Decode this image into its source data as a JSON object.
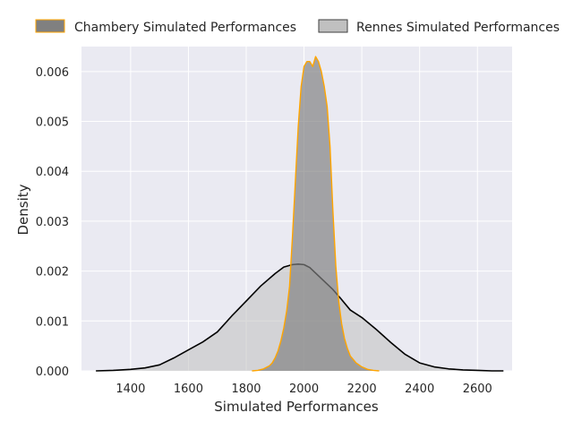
{
  "chart_data": {
    "type": "area",
    "xlabel": "Simulated Performances",
    "ylabel": "Density",
    "xlim": [
      1230,
      2720
    ],
    "ylim": [
      0,
      0.0065
    ],
    "x_ticks": [
      1400,
      1600,
      1800,
      2000,
      2200,
      2400,
      2600
    ],
    "y_ticks": [
      0.0,
      0.001,
      0.002,
      0.003,
      0.004,
      0.005,
      0.006
    ],
    "y_tick_labels": [
      "0.000",
      "0.001",
      "0.002",
      "0.003",
      "0.004",
      "0.005",
      "0.006"
    ],
    "grid": true,
    "legend_position": "top",
    "series": [
      {
        "name": "Chambery Simulated Performances",
        "fill": "#808080",
        "edge": "#FFA500",
        "x": [
          1820,
          1840,
          1860,
          1880,
          1890,
          1900,
          1910,
          1920,
          1930,
          1940,
          1950,
          1960,
          1970,
          1980,
          1990,
          2000,
          2010,
          2020,
          2030,
          2040,
          2050,
          2060,
          2070,
          2080,
          2090,
          2100,
          2110,
          2120,
          2130,
          2140,
          2150,
          2160,
          2180,
          2200,
          2220,
          2240,
          2260
        ],
        "y": [
          0.0,
          1e-05,
          4e-05,
          0.0001,
          0.00016,
          0.00026,
          0.0004,
          0.0006,
          0.00086,
          0.0012,
          0.0017,
          0.0027,
          0.0038,
          0.0049,
          0.0057,
          0.0061,
          0.0062,
          0.0062,
          0.0061,
          0.0063,
          0.0062,
          0.006,
          0.0057,
          0.0053,
          0.0045,
          0.0032,
          0.0021,
          0.0014,
          0.00095,
          0.00065,
          0.00045,
          0.0003,
          0.00016,
          8e-05,
          3e-05,
          1e-05,
          0.0
        ]
      },
      {
        "name": "Rennes Simulated Performances",
        "fill": "#c0c0c0",
        "edge": "#000000",
        "x": [
          1280,
          1340,
          1400,
          1450,
          1500,
          1550,
          1600,
          1650,
          1700,
          1750,
          1800,
          1850,
          1900,
          1930,
          1960,
          1980,
          2000,
          2020,
          2040,
          2060,
          2080,
          2100,
          2130,
          2160,
          2200,
          2250,
          2300,
          2350,
          2400,
          2450,
          2500,
          2550,
          2600,
          2650,
          2690
        ],
        "y": [
          0.0,
          1e-05,
          3e-05,
          6e-05,
          0.00012,
          0.00026,
          0.00042,
          0.00058,
          0.00078,
          0.0011,
          0.0014,
          0.0017,
          0.00195,
          0.00208,
          0.00213,
          0.00214,
          0.00213,
          0.00207,
          0.00196,
          0.00185,
          0.00174,
          0.00163,
          0.00143,
          0.00122,
          0.00107,
          0.00083,
          0.00057,
          0.00033,
          0.00016,
          8e-05,
          4e-05,
          2e-05,
          1e-05,
          0.0,
          0.0
        ]
      }
    ]
  }
}
